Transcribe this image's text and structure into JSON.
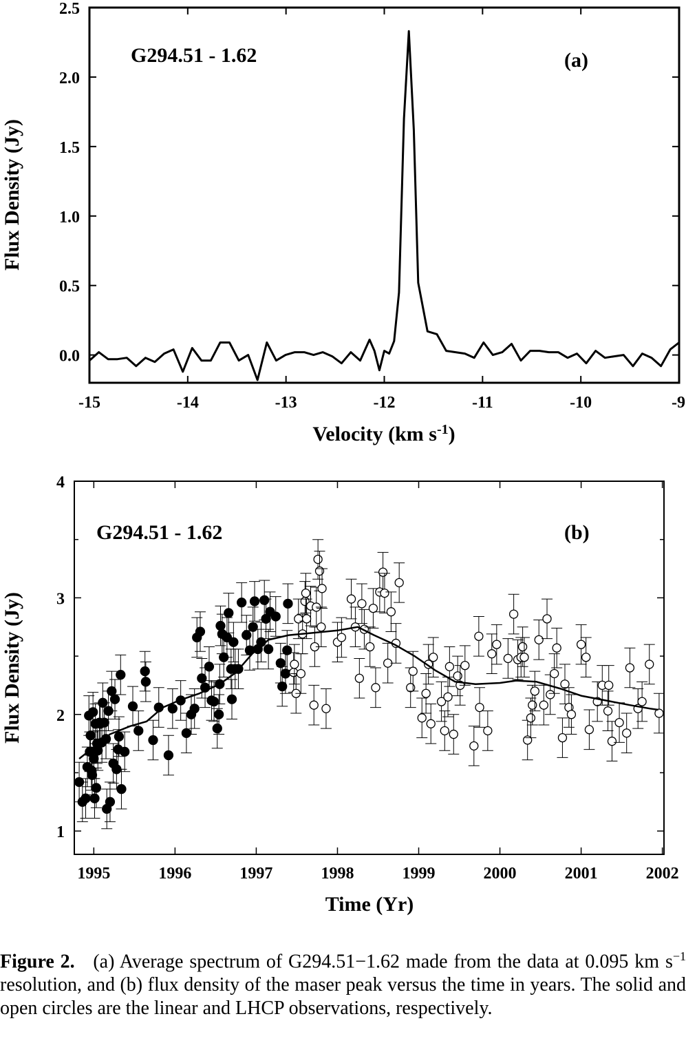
{
  "chart_data": [
    {
      "panel": "a",
      "type": "line",
      "source_label": "G294.51  - 1.62",
      "panel_label": "(a)",
      "xlabel": "Velocity (km s",
      "xlabel_sup": "-1",
      "xlabel_end": ")",
      "ylabel": "Flux Density (Jy)",
      "xlim": [
        -15,
        -9
      ],
      "ylim": [
        -0.2,
        2.5
      ],
      "xticks": [
        "-15",
        "-14",
        "-13",
        "-12",
        "-11",
        "-10",
        "-9"
      ],
      "yticks": [
        "0.0",
        "0.5",
        "1.0",
        "1.5",
        "2.0",
        "2.5"
      ],
      "x": [
        -15.0,
        -14.905,
        -14.81,
        -14.715,
        -14.62,
        -14.525,
        -14.43,
        -14.335,
        -14.24,
        -14.145,
        -14.05,
        -13.955,
        -13.86,
        -13.765,
        -13.67,
        -13.575,
        -13.48,
        -13.385,
        -13.29,
        -13.195,
        -13.1,
        -13.005,
        -12.91,
        -12.815,
        -12.72,
        -12.625,
        -12.53,
        -12.435,
        -12.34,
        -12.245,
        -12.15,
        -12.1,
        -12.05,
        -12.0,
        -11.95,
        -11.9,
        -11.85,
        -11.8,
        -11.75,
        -11.7,
        -11.655,
        -11.56,
        -11.465,
        -11.37,
        -11.275,
        -11.18,
        -11.085,
        -10.99,
        -10.895,
        -10.8,
        -10.705,
        -10.61,
        -10.515,
        -10.42,
        -10.325,
        -10.23,
        -10.135,
        -10.04,
        -9.945,
        -9.85,
        -9.755,
        -9.66,
        -9.565,
        -9.47,
        -9.375,
        -9.28,
        -9.185,
        -9.09,
        -9.0
      ],
      "y": [
        -0.04,
        0.02,
        -0.03,
        -0.03,
        -0.02,
        -0.08,
        -0.02,
        -0.05,
        0.01,
        0.04,
        -0.12,
        0.05,
        -0.04,
        -0.04,
        0.09,
        0.09,
        -0.04,
        0.0,
        -0.18,
        0.09,
        -0.04,
        0.0,
        0.02,
        0.02,
        0.0,
        0.02,
        -0.01,
        -0.06,
        0.02,
        -0.04,
        0.11,
        0.03,
        -0.11,
        0.03,
        0.01,
        0.1,
        0.45,
        1.7,
        2.33,
        1.62,
        0.52,
        0.17,
        0.15,
        0.03,
        0.02,
        0.01,
        -0.02,
        0.09,
        0.0,
        0.02,
        0.08,
        -0.04,
        0.03,
        0.03,
        0.02,
        0.02,
        -0.02,
        0.01,
        -0.06,
        0.03,
        -0.02,
        -0.01,
        0.0,
        -0.08,
        0.01,
        -0.02,
        -0.08,
        0.04,
        0.09
      ]
    },
    {
      "panel": "b",
      "type": "scatter",
      "source_label": "G294.51  - 1.62",
      "panel_label": "(b)",
      "xlabel": "Time (Yr)",
      "ylabel": "Flux Density (Jy)",
      "xlim": [
        1994.76,
        2002.02
      ],
      "ylim": [
        0.8,
        4.0
      ],
      "xticks": [
        "1995",
        "1996",
        "1997",
        "1998",
        "1999",
        "2000",
        "2001",
        "2002"
      ],
      "yticks": [
        "1",
        "2",
        "3",
        "4"
      ],
      "series": [
        {
          "marker": "filled-circle",
          "points": [
            [
              1994.82,
              1.42
            ],
            [
              1994.86,
              1.25
            ],
            [
              1994.9,
              1.28
            ],
            [
              1994.92,
              1.55
            ],
            [
              1994.94,
              1.99
            ],
            [
              1994.95,
              1.68
            ],
            [
              1994.96,
              1.82
            ],
            [
              1994.97,
              1.52
            ],
            [
              1994.98,
              1.48
            ],
            [
              1994.99,
              2.02
            ],
            [
              1995.0,
              1.62
            ],
            [
              1995.01,
              1.28
            ],
            [
              1995.02,
              1.92
            ],
            [
              1995.03,
              1.37
            ],
            [
              1995.04,
              1.75
            ],
            [
              1995.05,
              1.69
            ],
            [
              1995.07,
              1.93
            ],
            [
              1995.08,
              1.92
            ],
            [
              1995.1,
              1.76
            ],
            [
              1995.11,
              2.1
            ],
            [
              1995.13,
              1.93
            ],
            [
              1995.15,
              1.79
            ],
            [
              1995.16,
              1.19
            ],
            [
              1995.18,
              2.03
            ],
            [
              1995.2,
              1.25
            ],
            [
              1995.22,
              2.2
            ],
            [
              1995.24,
              1.58
            ],
            [
              1995.26,
              2.13
            ],
            [
              1995.28,
              1.53
            ],
            [
              1995.3,
              1.7
            ],
            [
              1995.31,
              1.81
            ],
            [
              1995.33,
              2.34
            ],
            [
              1995.34,
              1.36
            ],
            [
              1995.38,
              1.68
            ],
            [
              1995.48,
              2.07
            ],
            [
              1995.55,
              1.86
            ],
            [
              1995.63,
              2.37
            ],
            [
              1995.64,
              2.28
            ],
            [
              1995.73,
              1.78
            ],
            [
              1995.8,
              2.06
            ],
            [
              1995.92,
              1.65
            ],
            [
              1995.97,
              2.05
            ],
            [
              1996.07,
              2.12
            ],
            [
              1996.14,
              1.84
            ],
            [
              1996.2,
              2.0
            ],
            [
              1996.24,
              2.05
            ],
            [
              1996.27,
              2.66
            ],
            [
              1996.31,
              2.71
            ],
            [
              1996.33,
              2.31
            ],
            [
              1996.37,
              2.23
            ],
            [
              1996.42,
              2.41
            ],
            [
              1996.45,
              2.12
            ],
            [
              1996.48,
              2.11
            ],
            [
              1996.52,
              1.88
            ],
            [
              1996.54,
              2.0
            ],
            [
              1996.55,
              2.26
            ],
            [
              1996.56,
              2.76
            ],
            [
              1996.58,
              2.69
            ],
            [
              1996.6,
              2.49
            ],
            [
              1996.64,
              2.66
            ],
            [
              1996.66,
              2.87
            ],
            [
              1996.69,
              2.39
            ],
            [
              1996.7,
              2.13
            ],
            [
              1996.72,
              2.62
            ],
            [
              1996.74,
              2.39
            ],
            [
              1996.78,
              2.39
            ],
            [
              1996.82,
              2.96
            ],
            [
              1996.88,
              2.68
            ],
            [
              1996.92,
              2.55
            ],
            [
              1996.96,
              2.75
            ],
            [
              1996.98,
              2.97
            ],
            [
              1997.02,
              2.56
            ],
            [
              1997.06,
              2.62
            ],
            [
              1997.1,
              2.98
            ],
            [
              1997.12,
              2.82
            ],
            [
              1997.15,
              2.56
            ],
            [
              1997.17,
              2.88
            ],
            [
              1997.24,
              2.84
            ],
            [
              1997.3,
              2.44
            ],
            [
              1997.32,
              2.24
            ],
            [
              1997.36,
              2.35
            ],
            [
              1997.38,
              2.55
            ],
            [
              1997.39,
              2.95
            ]
          ]
        },
        {
          "marker": "open-circle",
          "points": [
            [
              1997.46,
              2.36
            ],
            [
              1997.47,
              2.43
            ],
            [
              1997.49,
              2.18
            ],
            [
              1997.52,
              2.82
            ],
            [
              1997.55,
              2.35
            ],
            [
              1997.57,
              2.69
            ],
            [
              1997.6,
              2.97
            ],
            [
              1997.61,
              3.04
            ],
            [
              1997.62,
              2.82
            ],
            [
              1997.67,
              2.93
            ],
            [
              1997.71,
              2.08
            ],
            [
              1997.72,
              2.58
            ],
            [
              1997.74,
              2.92
            ],
            [
              1997.76,
              3.33
            ],
            [
              1997.78,
              3.23
            ],
            [
              1997.8,
              2.75
            ],
            [
              1997.81,
              3.08
            ],
            [
              1997.86,
              2.05
            ],
            [
              1998.0,
              2.62
            ],
            [
              1998.05,
              2.66
            ],
            [
              1998.17,
              2.99
            ],
            [
              1998.22,
              2.75
            ],
            [
              1998.27,
              2.31
            ],
            [
              1998.3,
              2.95
            ],
            [
              1998.33,
              2.73
            ],
            [
              1998.4,
              2.58
            ],
            [
              1998.44,
              2.91
            ],
            [
              1998.47,
              2.23
            ],
            [
              1998.52,
              3.05
            ],
            [
              1998.56,
              3.22
            ],
            [
              1998.58,
              3.04
            ],
            [
              1998.62,
              2.44
            ],
            [
              1998.66,
              2.88
            ],
            [
              1998.72,
              2.61
            ],
            [
              1998.76,
              3.13
            ],
            [
              1998.9,
              2.23
            ],
            [
              1998.93,
              2.37
            ],
            [
              1999.04,
              1.97
            ],
            [
              1999.09,
              2.18
            ],
            [
              1999.12,
              2.43
            ],
            [
              1999.15,
              1.92
            ],
            [
              1999.18,
              2.49
            ],
            [
              1999.28,
              2.11
            ],
            [
              1999.32,
              1.86
            ],
            [
              1999.36,
              2.15
            ],
            [
              1999.38,
              2.41
            ],
            [
              1999.43,
              1.83
            ],
            [
              1999.48,
              2.33
            ],
            [
              1999.51,
              2.25
            ],
            [
              1999.57,
              2.42
            ],
            [
              1999.68,
              1.73
            ],
            [
              1999.74,
              2.67
            ],
            [
              1999.75,
              2.06
            ],
            [
              1999.85,
              1.86
            ],
            [
              1999.9,
              2.52
            ],
            [
              1999.96,
              2.6
            ],
            [
              2000.1,
              2.48
            ],
            [
              2000.17,
              2.86
            ],
            [
              2000.22,
              2.47
            ],
            [
              2000.26,
              2.49
            ],
            [
              2000.28,
              2.58
            ],
            [
              2000.3,
              2.49
            ],
            [
              2000.34,
              1.78
            ],
            [
              2000.38,
              1.97
            ],
            [
              2000.4,
              2.08
            ],
            [
              2000.43,
              2.2
            ],
            [
              2000.48,
              2.64
            ],
            [
              2000.54,
              2.08
            ],
            [
              2000.58,
              2.82
            ],
            [
              2000.62,
              2.17
            ],
            [
              2000.67,
              2.35
            ],
            [
              2000.7,
              2.57
            ],
            [
              2000.77,
              1.8
            ],
            [
              2000.8,
              2.26
            ],
            [
              2000.85,
              2.06
            ],
            [
              2000.88,
              2.0
            ],
            [
              2001.0,
              2.6
            ],
            [
              2001.06,
              2.49
            ],
            [
              2001.1,
              1.87
            ],
            [
              2001.2,
              2.11
            ],
            [
              2001.26,
              2.25
            ],
            [
              2001.33,
              2.03
            ],
            [
              2001.34,
              2.25
            ],
            [
              2001.38,
              1.77
            ],
            [
              2001.47,
              1.93
            ],
            [
              2001.56,
              1.84
            ],
            [
              2001.6,
              2.4
            ],
            [
              2001.7,
              2.05
            ],
            [
              2001.75,
              2.11
            ],
            [
              2001.84,
              2.43
            ],
            [
              2001.96,
              2.01
            ]
          ]
        }
      ],
      "smooth_line": [
        [
          1994.82,
          1.62
        ],
        [
          1995.0,
          1.72
        ],
        [
          1995.2,
          1.83
        ],
        [
          1995.45,
          1.9
        ],
        [
          1995.65,
          1.94
        ],
        [
          1995.85,
          2.06
        ],
        [
          1996.05,
          2.12
        ],
        [
          1996.3,
          2.18
        ],
        [
          1996.55,
          2.26
        ],
        [
          1996.75,
          2.36
        ],
        [
          1996.95,
          2.52
        ],
        [
          1997.15,
          2.64
        ],
        [
          1997.4,
          2.68
        ],
        [
          1997.7,
          2.7
        ],
        [
          1998.0,
          2.72
        ],
        [
          1998.25,
          2.75
        ],
        [
          1998.45,
          2.68
        ],
        [
          1998.7,
          2.6
        ],
        [
          1998.95,
          2.5
        ],
        [
          1999.2,
          2.38
        ],
        [
          1999.45,
          2.28
        ],
        [
          1999.7,
          2.26
        ],
        [
          2000.0,
          2.27
        ],
        [
          2000.2,
          2.29
        ],
        [
          2000.45,
          2.28
        ],
        [
          2000.75,
          2.22
        ],
        [
          2001.0,
          2.16
        ],
        [
          2001.3,
          2.12
        ],
        [
          2001.6,
          2.08
        ],
        [
          2001.85,
          2.05
        ],
        [
          2001.95,
          2.04
        ]
      ]
    }
  ],
  "caption": {
    "label": "Figure 2.",
    "text_1": "(a) Average spectrum of G294.51−1.62 made from the data at 0.095 km s",
    "sup": "−1",
    "text_2": " resolution, and (b) flux density of the maser peak versus the time in years. The solid and open circles are the linear and LHCP observations, respectively."
  }
}
